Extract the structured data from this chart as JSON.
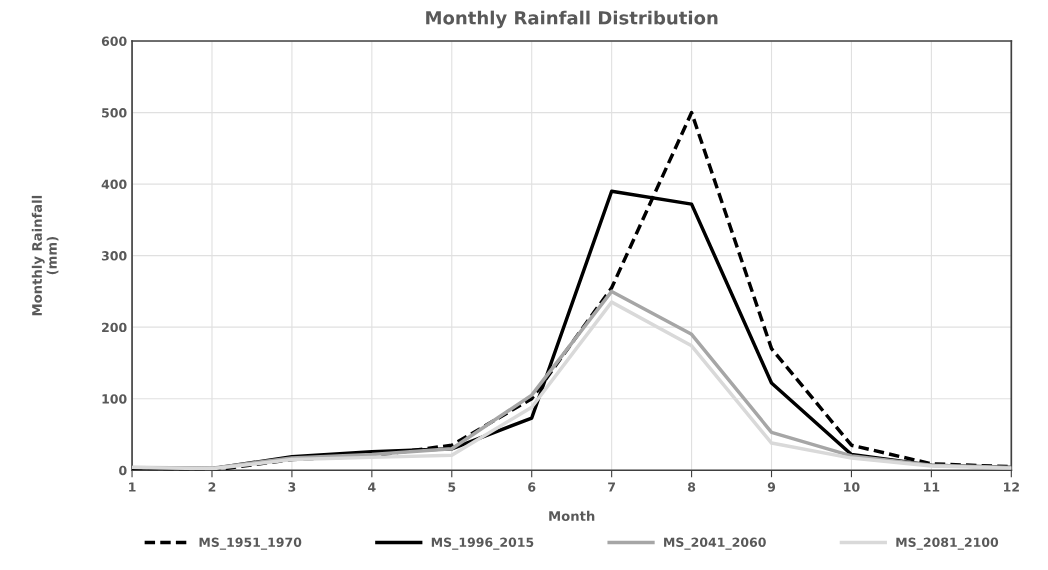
{
  "chart_data": {
    "type": "line",
    "title": "Monthly Rainfall Distribution",
    "xlabel": "Month",
    "ylabel": "Monthly Rainfall\n(mm)",
    "x": [
      1,
      2,
      3,
      4,
      5,
      6,
      7,
      8,
      9,
      10,
      11,
      12
    ],
    "xlim": [
      1,
      12
    ],
    "xticks": [
      1,
      2,
      3,
      4,
      5,
      6,
      7,
      8,
      9,
      10,
      11,
      12
    ],
    "ylim": [
      0,
      600
    ],
    "yticks": [
      0,
      100,
      200,
      300,
      400,
      500,
      600
    ],
    "grid": true,
    "legend": "bottom",
    "marker": "none",
    "series": [
      {
        "name": "MS_1951_1970",
        "color": "#000000",
        "line_style": "dashed",
        "values": [
          3,
          0,
          15,
          20,
          35,
          100,
          255,
          500,
          170,
          35,
          9,
          5
        ]
      },
      {
        "name": "MS_1996_2015",
        "color": "#000000",
        "line_style": "solid",
        "values": [
          3,
          2,
          19,
          26,
          30,
          73,
          390,
          372,
          122,
          22,
          7,
          4
        ]
      },
      {
        "name": "MS_2041_2060",
        "color": "#a6a6a6",
        "line_style": "solid",
        "values": [
          4,
          3,
          17,
          22,
          30,
          105,
          250,
          190,
          53,
          20,
          7,
          4
        ]
      },
      {
        "name": "MS_2081_2100",
        "color": "#d9d9d9",
        "line_style": "solid",
        "values": [
          4,
          2,
          15,
          18,
          21,
          88,
          235,
          174,
          38,
          17,
          6,
          3
        ]
      }
    ]
  }
}
